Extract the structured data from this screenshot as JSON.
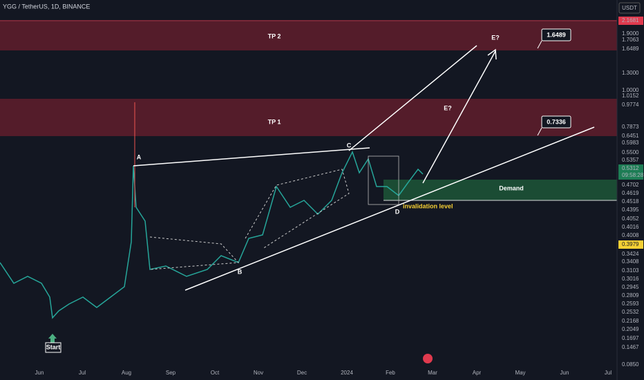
{
  "header": {
    "title": "YGG / TetherUS, 1D, BINANCE",
    "currency": "USDT"
  },
  "annotations": {
    "tp2": "TP 2",
    "tp1": "TP 1",
    "demand": "Demand",
    "invalidation": "invalidation level",
    "a": "A",
    "b": "B",
    "c": "C",
    "d": "D",
    "e1": "E?",
    "e2": "E?",
    "target2": "1.6489",
    "target1": "0.7336",
    "start": "Start"
  },
  "price_axis": [
    "2.1681",
    "1.9000",
    "1.7063",
    "1.6489",
    "1.3000",
    "1.0000",
    "1.0152",
    "0.9774",
    "0.7873",
    "0.6451",
    "0.5983",
    "0.5500",
    "0.5357",
    "0.5312",
    "09:58:28",
    "0.4702",
    "0.4619",
    "0.4518",
    "0.4395",
    "0.4052",
    "0.4016",
    "0.4008",
    "0.3979",
    "0.3424",
    "0.3408",
    "0.3103",
    "0.3016",
    "0.2945",
    "0.2809",
    "0.2593",
    "0.2532",
    "0.2168",
    "0.2049",
    "0.1697",
    "0.1467",
    "0.0850"
  ],
  "time_axis": [
    "Jun",
    "Jul",
    "Aug",
    "Sep",
    "Oct",
    "Nov",
    "Dec",
    "2024",
    "Feb",
    "Mar",
    "Apr",
    "May",
    "Jun",
    "Jul"
  ]
}
